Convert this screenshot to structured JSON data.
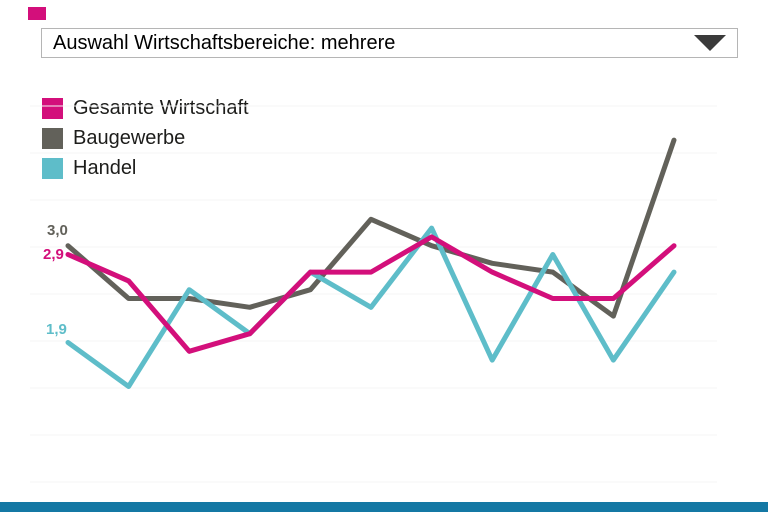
{
  "header": {
    "brand_square_color": "#d30f7b",
    "dropdown": {
      "label": "Auswahl Wirtschaftsbereiche: mehrere"
    }
  },
  "legend": {
    "items": [
      {
        "label": "Gesamte Wirtschaft",
        "color": "#d30f7b"
      },
      {
        "label": "Baugewerbe",
        "color": "#62615a"
      },
      {
        "label": "Handel",
        "color": "#5ebdc9"
      }
    ]
  },
  "value_labels": [
    {
      "text": "3,0",
      "color": "#62615a"
    },
    {
      "text": "2,9",
      "color": "#d30f7b"
    },
    {
      "text": "1,9",
      "color": "#5ebdc9"
    }
  ],
  "chart_data": {
    "type": "line",
    "title": "",
    "x": [
      1,
      2,
      3,
      4,
      5,
      6,
      7,
      8,
      9,
      10,
      11
    ],
    "x_tick_labels_visible": false,
    "y_axis_visible": false,
    "ylim": [
      0.5,
      4.5
    ],
    "grid": "horizontal-faint",
    "legend_position": "top-left",
    "series": [
      {
        "name": "Baugewerbe",
        "color": "#62615a",
        "values": [
          3.0,
          2.4,
          2.4,
          2.3,
          2.5,
          3.3,
          3.0,
          2.8,
          2.7,
          2.2,
          4.2
        ]
      },
      {
        "name": "Handel",
        "color": "#5ebdc9",
        "values": [
          1.9,
          1.4,
          2.5,
          2.0,
          2.7,
          2.3,
          3.2,
          1.7,
          2.9,
          1.7,
          2.7
        ]
      },
      {
        "name": "Gesamte Wirtschaft",
        "color": "#d30f7b",
        "values": [
          2.9,
          2.6,
          1.8,
          2.0,
          2.7,
          2.7,
          3.1,
          2.7,
          2.4,
          2.4,
          3.0
        ]
      }
    ],
    "first_value_labels": {
      "Baugewerbe": "3,0",
      "Gesamte Wirtschaft": "2,9",
      "Handel": "1,9"
    }
  },
  "footer": {
    "bar_color": "#1478a4"
  }
}
